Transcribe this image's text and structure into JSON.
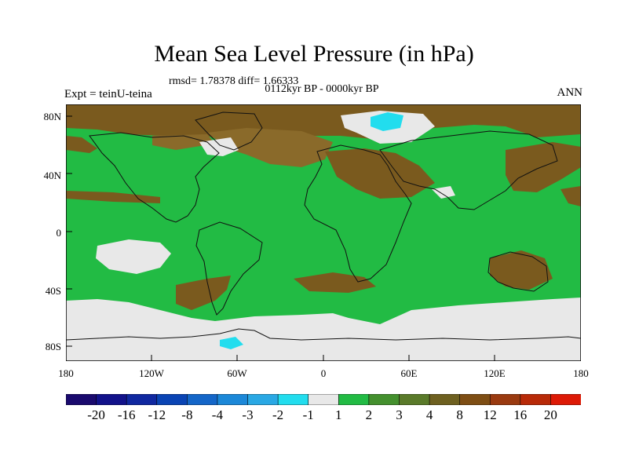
{
  "title": "Mean Sea Level Pressure (in hPa)",
  "stats": "rmsd= 1.78378 diff= 1.66333",
  "period": "0112kyr BP - 0000kyr BP",
  "experiment": "Expt = teinU-teina",
  "season": "ANN",
  "lat_labels": [
    "80N",
    "40N",
    "0",
    "40S",
    "80S"
  ],
  "lon_labels": [
    "180",
    "120W",
    "60W",
    "0",
    "60E",
    "120E",
    "180"
  ],
  "colors": {
    "green_main": "#22bb44",
    "brown_dark": "#7a5a1e",
    "brown_mid": "#8a6a2a",
    "olive": "#5a7a2a",
    "light_gray": "#e8e8e8",
    "cyan": "#22ddee"
  },
  "colorbar": {
    "labels": [
      "-20",
      "-16",
      "-12",
      "-8",
      "-4",
      "-3",
      "-2",
      "-1",
      "1",
      "2",
      "3",
      "4",
      "8",
      "12",
      "16",
      "20"
    ],
    "colors": [
      "#1a0a6e",
      "#12128a",
      "#1028a0",
      "#0a44b4",
      "#1466c8",
      "#1c88d8",
      "#2aa8e4",
      "#22ddee",
      "#e8e8e8",
      "#22bb44",
      "#44902e",
      "#5a7a2a",
      "#6e6020",
      "#7e4e14",
      "#9a3a10",
      "#b82a08",
      "#dd1a06"
    ]
  }
}
